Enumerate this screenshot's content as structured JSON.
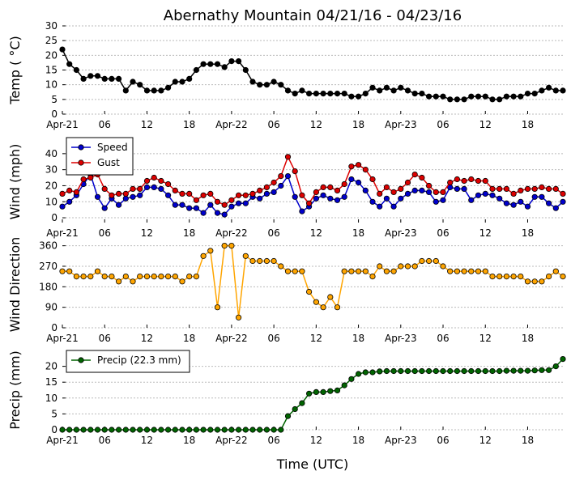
{
  "title": "Abernathy Mountain 04/21/16 - 04/23/16",
  "xlabel": "Time (UTC)",
  "x_tick_labels": [
    "Apr-21",
    "06",
    "12",
    "18",
    "Apr-22",
    "06",
    "12",
    "18",
    "Apr-23",
    "06",
    "12",
    "18"
  ],
  "chart_data": [
    {
      "type": "line",
      "ylabel": "Temp ( °C)",
      "ylim": [
        0,
        30
      ],
      "yticks": [
        "0",
        "5",
        "10",
        "15",
        "20",
        "25",
        "30"
      ],
      "x_unit": "hours since Apr-21 00 UTC",
      "x_range": [
        0,
        71
      ],
      "series": [
        {
          "color": "#000000",
          "x": [
            0,
            1,
            2,
            3,
            4,
            5,
            6,
            7,
            8,
            9,
            10,
            11,
            12,
            13,
            14,
            15,
            16,
            17,
            18,
            19,
            20,
            21,
            22,
            23,
            24,
            25,
            26,
            27,
            28,
            29,
            30,
            31,
            32,
            33,
            34,
            35,
            36,
            37,
            38,
            39,
            40,
            41,
            42,
            43,
            44,
            45,
            46,
            47,
            48,
            49,
            50,
            51,
            52,
            53,
            54,
            55,
            56,
            57,
            58,
            59,
            60,
            61,
            62,
            63,
            64,
            65,
            66,
            67,
            68,
            69,
            70,
            71
          ],
          "values": [
            22,
            17,
            15,
            12,
            13,
            13,
            12,
            12,
            12,
            8,
            11,
            10,
            8,
            8,
            8,
            9,
            11,
            11,
            12,
            15,
            17,
            17,
            17,
            16,
            18,
            18,
            15,
            11,
            10,
            10,
            11,
            10,
            8,
            7,
            8,
            7,
            7,
            7,
            7,
            7,
            7,
            6,
            6,
            7,
            9,
            8,
            9,
            8,
            9,
            8,
            7,
            7,
            6,
            6,
            6,
            5,
            5,
            5,
            6,
            6,
            6,
            5,
            5,
            6,
            6,
            6,
            7,
            7,
            8,
            9,
            8,
            8
          ]
        }
      ]
    },
    {
      "type": "line",
      "ylabel": "Wind (mph)",
      "ylim": [
        -3,
        48
      ],
      "yticks": [
        "0",
        "10",
        "20",
        "30",
        "40"
      ],
      "legend": "top-left",
      "x_range": [
        0,
        71
      ],
      "series": [
        {
          "name": "Speed",
          "color": "#0000cc",
          "values": [
            7,
            10,
            14,
            21,
            27,
            13,
            6,
            12,
            8,
            12,
            13,
            14,
            19,
            19,
            18,
            14,
            8,
            8,
            6,
            6,
            3,
            8,
            3,
            2,
            7,
            9,
            9,
            13,
            12,
            15,
            16,
            20,
            26,
            13,
            4,
            7,
            12,
            14,
            12,
            11,
            13,
            24,
            22,
            17,
            10,
            7,
            12,
            7,
            12,
            15,
            17,
            17,
            16,
            10,
            11,
            19,
            18,
            18,
            11,
            14,
            15,
            14,
            12,
            9,
            8,
            10,
            7,
            13,
            13,
            9,
            6,
            10
          ]
        },
        {
          "name": "Gust",
          "color": "#dd0000",
          "values": [
            15,
            17,
            16,
            24,
            25,
            27,
            18,
            14,
            15,
            15,
            18,
            18,
            23,
            25,
            23,
            21,
            17,
            15,
            15,
            11,
            14,
            15,
            10,
            8,
            11,
            14,
            14,
            15,
            17,
            19,
            22,
            26,
            38,
            29,
            14,
            9,
            16,
            19,
            19,
            17,
            21,
            32,
            33,
            30,
            24,
            15,
            19,
            16,
            18,
            22,
            27,
            25,
            20,
            16,
            16,
            22,
            24,
            23,
            24,
            23,
            23,
            18,
            18,
            18,
            15,
            17,
            18,
            18,
            19,
            18,
            18,
            15
          ]
        }
      ]
    },
    {
      "type": "scatter",
      "ylabel": "Wind Direction",
      "ylim": [
        0,
        380
      ],
      "yticks": [
        "0",
        "90",
        "180",
        "270",
        "360"
      ],
      "x_range": [
        0,
        71
      ],
      "series": [
        {
          "color": "#ffa500",
          "values": [
            248,
            248,
            225,
            225,
            225,
            248,
            225,
            225,
            203,
            225,
            203,
            225,
            225,
            225,
            225,
            225,
            225,
            203,
            225,
            225,
            315,
            338,
            90,
            360,
            360,
            45,
            315,
            293,
            293,
            293,
            293,
            270,
            248,
            248,
            248,
            158,
            113,
            90,
            135,
            90,
            248,
            248,
            248,
            248,
            225,
            270,
            248,
            248,
            270,
            270,
            270,
            293,
            293,
            293,
            270,
            248,
            248,
            248,
            248,
            248,
            248,
            225,
            225,
            225,
            225,
            225,
            203,
            203,
            203,
            225,
            248,
            225
          ]
        }
      ]
    },
    {
      "type": "line",
      "ylabel": "Precip (mm)",
      "ylim": [
        0,
        25
      ],
      "yticks": [
        "0",
        "5",
        "10",
        "15",
        "20"
      ],
      "legend": "top-left",
      "x_range": [
        0,
        71
      ],
      "series": [
        {
          "name": "Precip (22.3 mm)",
          "color": "#006400",
          "values": [
            0,
            0,
            0,
            0,
            0,
            0,
            0,
            0,
            0,
            0,
            0,
            0,
            0,
            0,
            0,
            0,
            0,
            0,
            0,
            0,
            0,
            0,
            0,
            0,
            0,
            0,
            0,
            0,
            0,
            0,
            0,
            0,
            4.3,
            6.5,
            8.4,
            11.4,
            11.9,
            11.9,
            12.2,
            12.4,
            14,
            16,
            17.6,
            18.1,
            18.1,
            18.4,
            18.5,
            18.5,
            18.5,
            18.5,
            18.5,
            18.5,
            18.5,
            18.5,
            18.5,
            18.5,
            18.5,
            18.5,
            18.5,
            18.5,
            18.5,
            18.5,
            18.5,
            18.6,
            18.6,
            18.6,
            18.6,
            18.7,
            18.8,
            18.8,
            20,
            22.3
          ]
        }
      ]
    }
  ]
}
